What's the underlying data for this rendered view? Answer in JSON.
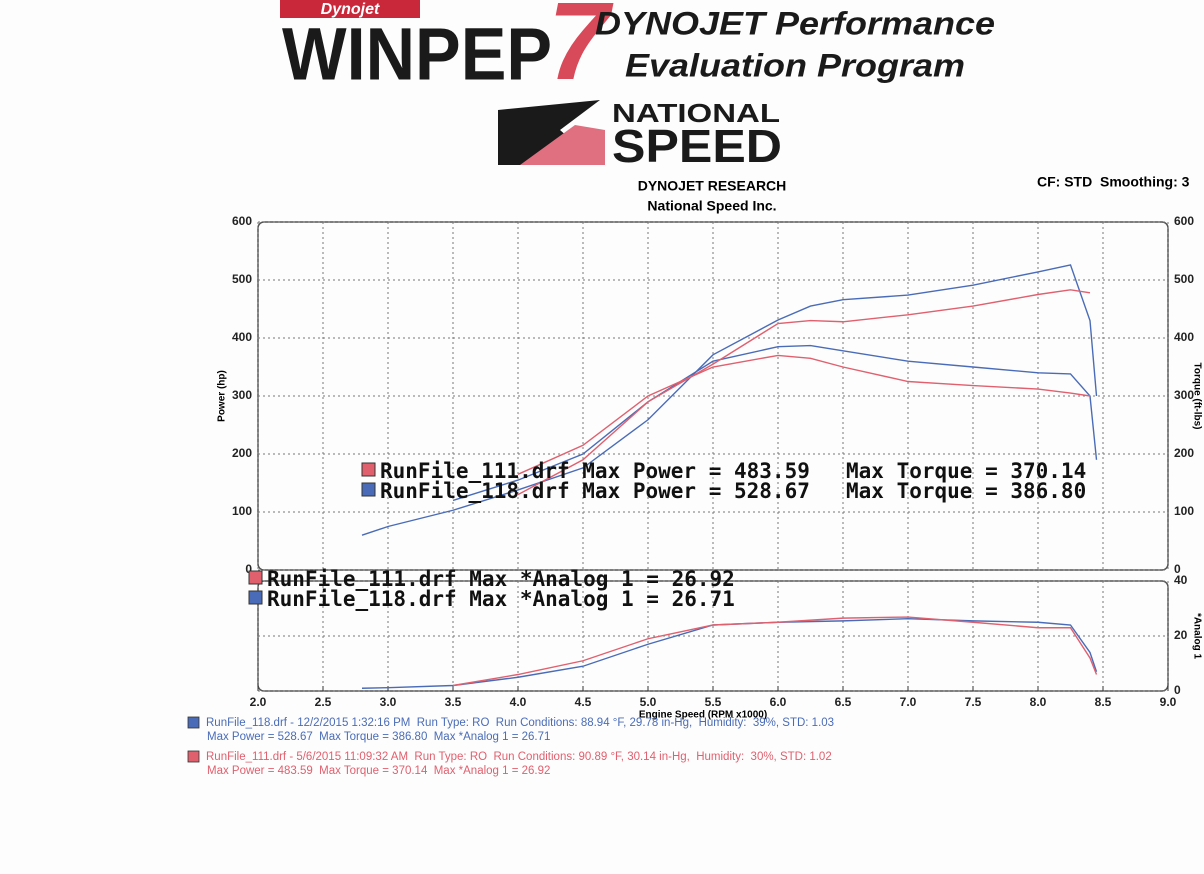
{
  "header": {
    "brand": "Dynojet",
    "product": "WINPEP",
    "version": "7",
    "tagline_1": "DYNOJET Performance",
    "tagline_2": "Evaluation Program",
    "shop_1": "NATIONAL",
    "shop_2": "SPEED",
    "company": "DYNOJET RESEARCH",
    "customer": "National Speed Inc.",
    "settings": "CF: STD  Smoothing: 3"
  },
  "chart_data": [
    {
      "type": "line",
      "ylabel": "Power (hp)",
      "y2label": "Torque (ft-lbs)",
      "x": [
        2.8,
        3.0,
        3.5,
        4.0,
        4.5,
        5.0,
        5.5,
        6.0,
        6.25,
        6.5,
        7.0,
        7.5,
        8.0,
        8.25,
        8.4,
        8.45
      ],
      "xlim": [
        2,
        9
      ],
      "ylim": [
        0,
        600
      ],
      "yticks": [
        0,
        100,
        200,
        300,
        400,
        500,
        600
      ],
      "y2lim": [
        0,
        600
      ],
      "y2ticks": [
        0,
        100,
        200,
        300,
        400,
        500,
        600
      ],
      "grid": true,
      "series": [
        {
          "name": "RunFile_118.drf",
          "color": "#4a6cb8",
          "values": [
            60,
            75,
            103,
            138,
            176,
            259,
            371,
            431,
            455,
            466,
            474,
            491,
            514,
            526,
            430,
            300
          ]
        },
        {
          "name": "RunFile_118.drf",
          "color": "#4a6cb8",
          "axis": "y2",
          "values": [
            null,
            null,
            120,
            155,
            200,
            290,
            360,
            385,
            387,
            378,
            360,
            350,
            340,
            338,
            300,
            190
          ]
        },
        {
          "name": "RunFile_111.drf",
          "color": "#e0606e",
          "values": [
            null,
            null,
            null,
            130,
            190,
            290,
            355,
            425,
            430,
            428,
            440,
            455,
            475,
            483,
            478,
            null
          ]
        },
        {
          "name": "RunFile_111.drf",
          "color": "#e0606e",
          "axis": "y2",
          "values": [
            null,
            null,
            null,
            165,
            215,
            300,
            350,
            370,
            365,
            350,
            325,
            318,
            312,
            305,
            300,
            null
          ]
        }
      ],
      "annotations": [
        {
          "color": "#e0606e",
          "texts": [
            "RunFile_111.drf Max Power = 483.59",
            "Max Torque = 370.14"
          ]
        },
        {
          "color": "#4a6cb8",
          "texts": [
            "RunFile_118.drf Max Power = 528.67",
            "Max Torque = 386.80"
          ]
        }
      ]
    },
    {
      "type": "line",
      "xlabel": "Engine Speed (RPM x1000)",
      "ylabel": "*Analog 1",
      "x": [
        2.8,
        3.0,
        3.5,
        4.0,
        4.5,
        5.0,
        5.5,
        6.0,
        6.5,
        7.0,
        7.5,
        8.0,
        8.25,
        8.4,
        8.45
      ],
      "xlim": [
        2,
        9
      ],
      "xticks": [
        {
          "value": 2,
          "label": "2.0"
        },
        2.5,
        {
          "value": 3,
          "label": "3.0"
        },
        3.5,
        {
          "value": 4,
          "label": "4.0"
        },
        4.5,
        {
          "value": 5,
          "label": "5.0"
        },
        5.5,
        {
          "value": 6,
          "label": "6.0"
        },
        6.5,
        {
          "value": 7,
          "label": "7.0"
        },
        7.5,
        {
          "value": 8,
          "label": "8.0"
        },
        8.5,
        {
          "value": 9,
          "label": "9.0"
        }
      ],
      "ylim": [
        0,
        40
      ],
      "yticks": [
        0,
        20,
        40
      ],
      "grid": true,
      "series": [
        {
          "name": "RunFile_118.drf",
          "color": "#4a6cb8",
          "values": [
            1,
            1.2,
            2,
            5,
            9,
            17,
            24,
            25,
            25.5,
            26.3,
            25.5,
            25,
            24,
            14,
            7
          ]
        },
        {
          "name": "RunFile_111.drf",
          "color": "#e0606e",
          "values": [
            null,
            null,
            2,
            6,
            11,
            19,
            24,
            25,
            26.5,
            26.9,
            25,
            23,
            23,
            12,
            6
          ]
        }
      ],
      "annotations": [
        {
          "color": "#e0606e",
          "texts": [
            "RunFile_111.drf Max *Analog 1 = 26.92"
          ]
        },
        {
          "color": "#4a6cb8",
          "texts": [
            "RunFile_118.drf Max *Analog 1 = 26.71"
          ]
        }
      ]
    }
  ],
  "footer": [
    {
      "color": "#4a6cb8",
      "lines": [
        "RunFile_118.drf - 12/2/2015 1:32:16 PM  Run Type: RO  Run Conditions: 88.94 °F, 29.78 in-Hg,  Humidity:  39%, STD: 1.03",
        "Max Power = 528.67  Max Torque = 386.80  Max *Analog 1 = 26.71"
      ]
    },
    {
      "color": "#e0606e",
      "lines": [
        "RunFile_111.drf - 5/6/2015 11:09:32 AM  Run Type: RO  Run Conditions: 90.89 °F, 30.14 in-Hg,  Humidity:  30%, STD: 1.02",
        "Max Power = 483.59  Max Torque = 370.14  Max *Analog 1 = 26.92"
      ]
    }
  ]
}
